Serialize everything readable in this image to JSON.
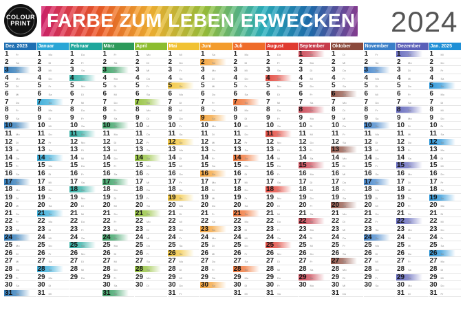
{
  "header": {
    "logo_line1": "COLOUR",
    "logo_line2": "PRINT",
    "title": "FARBE ZUM LEBEN ERWECKEN",
    "year": "2024"
  },
  "months": [
    {
      "label": "Dez. 2023",
      "days": 31,
      "start": 4,
      "color": "#1f6fb2"
    },
    {
      "label": "Januar",
      "days": 31,
      "start": 0,
      "color": "#2aa6d6"
    },
    {
      "label": "Februar",
      "days": 29,
      "start": 3,
      "color": "#1fa79c"
    },
    {
      "label": "März",
      "days": 31,
      "start": 4,
      "color": "#2c9a5a"
    },
    {
      "label": "April",
      "days": 30,
      "start": 0,
      "color": "#8cbd2f"
    },
    {
      "label": "Mai",
      "days": 31,
      "start": 2,
      "color": "#f1c232"
    },
    {
      "label": "Juni",
      "days": 30,
      "start": 5,
      "color": "#f39c2c"
    },
    {
      "label": "Juli",
      "days": 31,
      "start": 0,
      "color": "#ef6c2a"
    },
    {
      "label": "August",
      "days": 31,
      "start": 3,
      "color": "#e03a2f"
    },
    {
      "label": "September",
      "days": 30,
      "start": 6,
      "color": "#c73b4a"
    },
    {
      "label": "Oktober",
      "days": 31,
      "start": 1,
      "color": "#8b4a3c"
    },
    {
      "label": "November",
      "days": 30,
      "start": 4,
      "color": "#3a7fc8"
    },
    {
      "label": "Dezember",
      "days": 31,
      "start": 6,
      "color": "#5a5fb8"
    },
    {
      "label": "Jan. 2025",
      "days": 31,
      "start": 2,
      "color": "#1e8fd6"
    }
  ],
  "weekdays": [
    "Mo",
    "Di",
    "Mi",
    "Do",
    "Fr",
    "Sa",
    "So"
  ]
}
